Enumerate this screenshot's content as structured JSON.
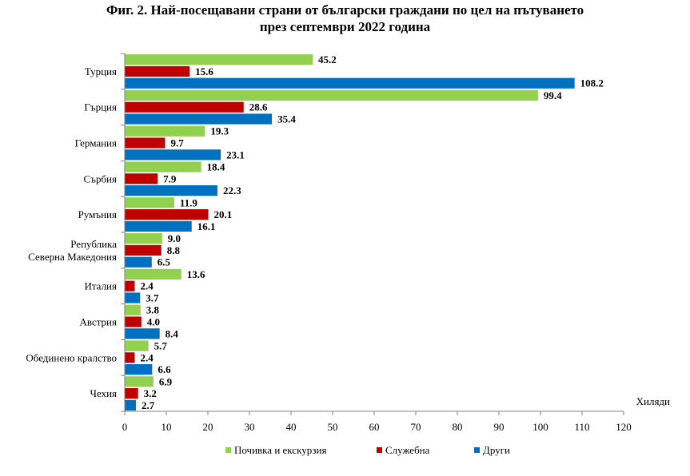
{
  "title": {
    "line1": "Фиг. 2. Най-посещавани страни от български граждани по цел на пътуването",
    "line2": "през септември 2022 година"
  },
  "chart_data": {
    "type": "bar",
    "orientation": "horizontal",
    "title": "Фиг. 2. Най-посещавани страни от български граждани по цел на пътуването през септември 2022 година",
    "unit_label": "Хиляди",
    "categories": [
      [
        "Турция"
      ],
      [
        "Гърция"
      ],
      [
        "Германия"
      ],
      [
        "Сърбия"
      ],
      [
        "Румъния"
      ],
      [
        "Република",
        "Северна Македония"
      ],
      [
        "Италия"
      ],
      [
        "Австрия"
      ],
      [
        "Обединено кралство"
      ],
      [
        "Чехия"
      ]
    ],
    "series": [
      {
        "name": "Почивка и екскурзия",
        "color": "#92d050",
        "values": [
          45.2,
          99.4,
          19.3,
          18.4,
          11.9,
          9.0,
          13.6,
          3.8,
          5.7,
          6.9
        ]
      },
      {
        "name": "Служебна",
        "color": "#c00000",
        "values": [
          15.6,
          28.6,
          9.7,
          7.9,
          20.1,
          8.8,
          2.4,
          4.0,
          2.4,
          3.2
        ]
      },
      {
        "name": "Други",
        "color": "#0070c0",
        "values": [
          108.2,
          35.4,
          23.1,
          22.3,
          16.1,
          6.5,
          3.7,
          8.4,
          6.6,
          2.7
        ]
      }
    ],
    "xlim": [
      0,
      120
    ],
    "xticks": [
      0,
      10,
      20,
      30,
      40,
      50,
      60,
      70,
      80,
      90,
      100,
      110,
      120
    ],
    "grid": false,
    "legend_position": "bottom"
  }
}
